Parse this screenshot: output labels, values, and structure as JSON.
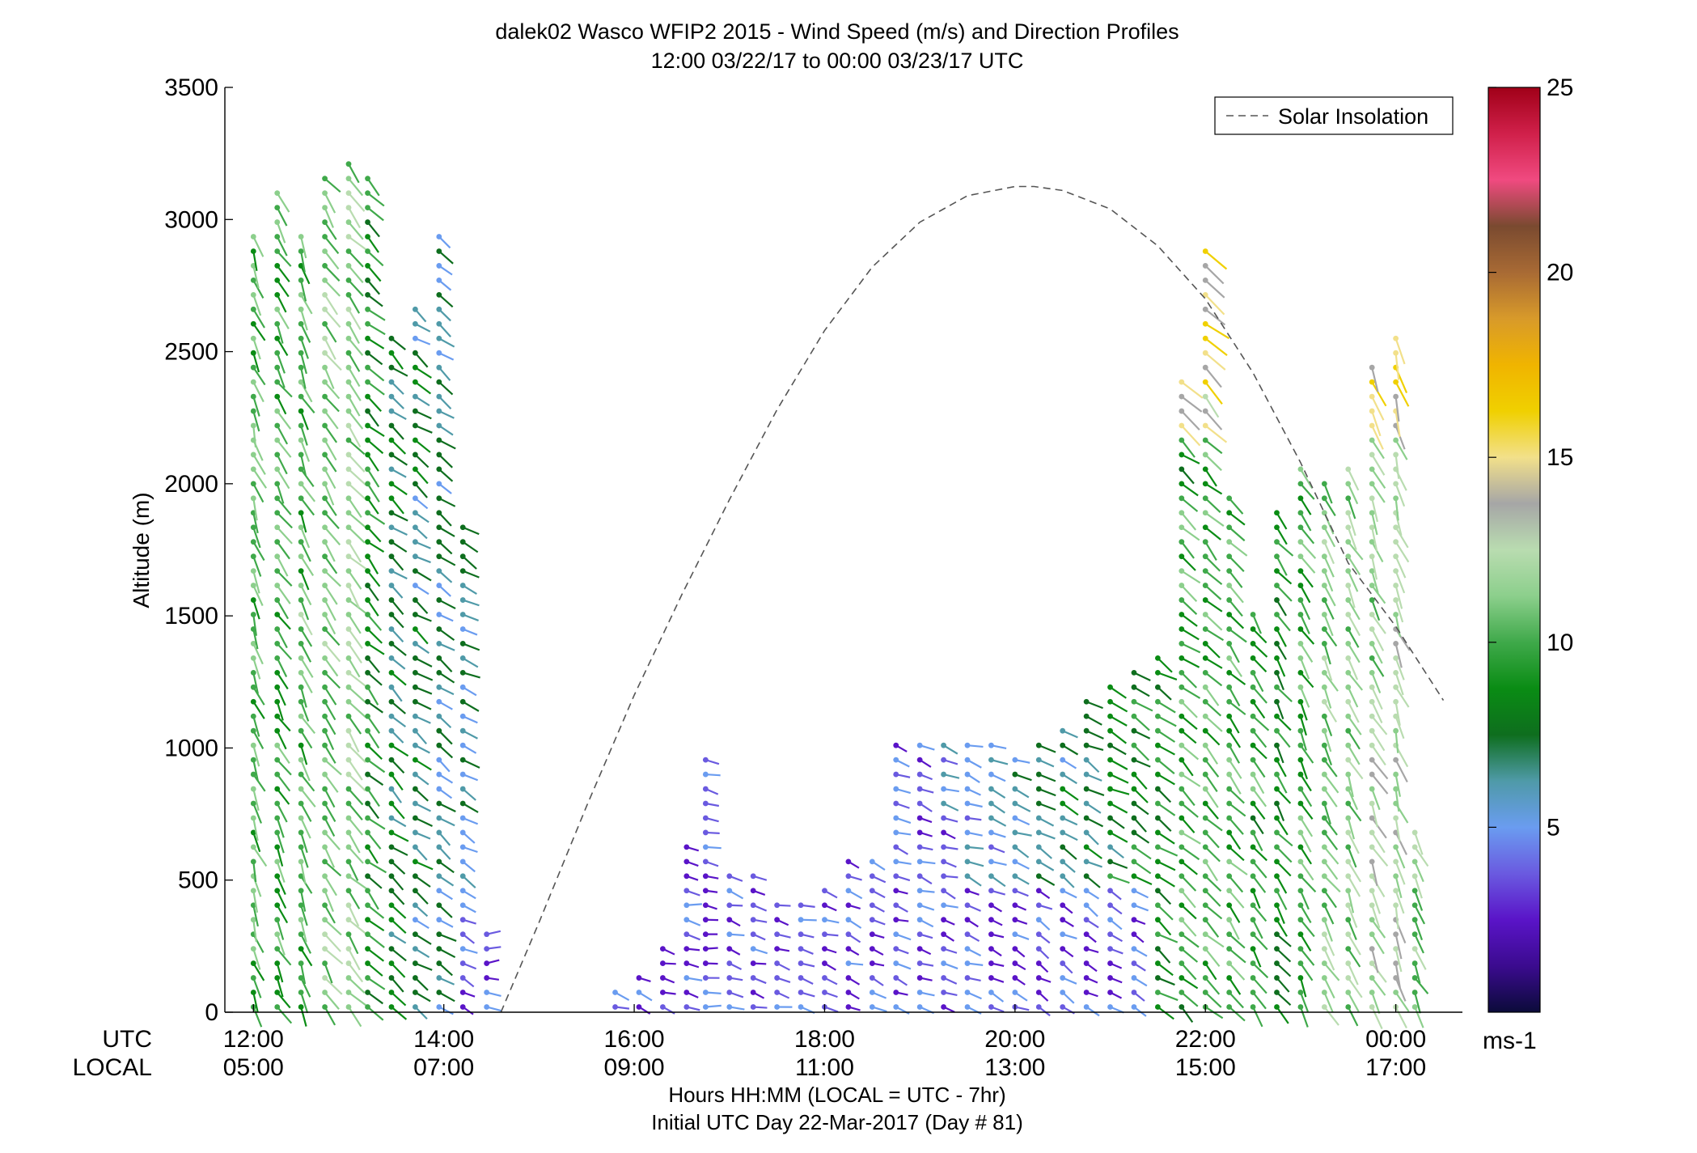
{
  "chart_data": {
    "type": "scatter",
    "title": "dalek02 Wasco WFIP2 2015 - Wind Speed (m/s) and Direction Profiles",
    "subtitle": "12:00 03/22/17 to 00:00 03/23/17  UTC",
    "ylabel": "Altitude (m)",
    "xlabel": "Hours HH:MM  (LOCAL = UTC - 7hr)",
    "xlabel2": "Initial UTC Day 22-Mar-2017 (Day # 81)",
    "x_row_labels": {
      "utc": "UTC",
      "local": "LOCAL"
    },
    "ylim": [
      0,
      3500
    ],
    "y_ticks": [
      "0",
      "500",
      "1000",
      "1500",
      "2000",
      "2500",
      "3000",
      "3500"
    ],
    "y_tick_values": [
      0,
      500,
      1000,
      1500,
      2000,
      2500,
      3000,
      3500
    ],
    "xlim_hours_utc": [
      11.7,
      24.7
    ],
    "x_tick_hours_utc": [
      12,
      14,
      16,
      18,
      20,
      22,
      24
    ],
    "x_ticks_utc": [
      "12:00",
      "14:00",
      "16:00",
      "18:00",
      "20:00",
      "22:00",
      "00:00"
    ],
    "x_ticks_local": [
      "05:00",
      "07:00",
      "09:00",
      "11:00",
      "13:00",
      "15:00",
      "17:00"
    ],
    "grid": false,
    "legend": {
      "position": "top-right",
      "entries": [
        "Solar Insolation"
      ]
    },
    "colorbar": {
      "label": "ms-1",
      "range": [
        0,
        25
      ],
      "ticks": [
        "5",
        "10",
        "15",
        "20",
        "25"
      ],
      "tick_values": [
        5,
        10,
        15,
        20,
        25
      ],
      "colors": [
        "#0b0b3a",
        "#3b0b8f",
        "#5a14c8",
        "#6a5ae0",
        "#6a9cf0",
        "#4f9aa8",
        "#0e6e1e",
        "#0a8c14",
        "#3fa94a",
        "#8ccf8c",
        "#b9dcb0",
        "#a6a6a6",
        "#f2e08a",
        "#f0d000",
        "#f0b400",
        "#d89a2a",
        "#a86a34",
        "#7a4a30",
        "#f04a80",
        "#d0204a",
        "#a00018"
      ]
    },
    "solar_insolation": {
      "series_name": "Solar Insolation",
      "style": "dashed",
      "color": "#555555",
      "peak_altitude_equivalent": 3125,
      "peak_hour_utc": 20.2,
      "x": [
        14.6,
        15.0,
        15.5,
        16.0,
        16.5,
        17.0,
        17.5,
        18.0,
        18.5,
        19.0,
        19.5,
        20.0,
        20.2,
        20.5,
        21.0,
        21.5,
        22.0,
        22.5,
        23.0,
        23.5,
        24.0,
        24.5
      ],
      "y": [
        0,
        340,
        780,
        1200,
        1580,
        1940,
        2280,
        2580,
        2820,
        2990,
        3090,
        3125,
        3125,
        3110,
        3040,
        2900,
        2700,
        2420,
        2080,
        1700,
        1460,
        1180
      ]
    },
    "wind_profiles": {
      "description_fields": [
        "hour_utc",
        "altitude_top_m",
        "altitude_bottom_m",
        "speed_mps",
        "direction_deg"
      ],
      "columns": [
        {
          "x": 12.0,
          "z0": 0,
          "z1": 2950,
          "spd": 10.5,
          "dir": 200
        },
        {
          "x": 12.25,
          "z0": 0,
          "z1": 3100,
          "spd": 10.0,
          "dir": 210
        },
        {
          "x": 12.5,
          "z0": 0,
          "z1": 2950,
          "spd": 10.5,
          "dir": 205
        },
        {
          "x": 12.75,
          "z0": 0,
          "z1": 3200,
          "spd": 11.0,
          "dir": 215
        },
        {
          "x": 13.0,
          "z0": 0,
          "z1": 3250,
          "spd": 11.5,
          "dir": 220
        },
        {
          "x": 13.2,
          "z0": 0,
          "z1": 3180,
          "spd": 9.0,
          "dir": 225
        },
        {
          "x": 13.45,
          "z0": 0,
          "z1": 2600,
          "spd": 7.5,
          "dir": 230
        },
        {
          "x": 13.7,
          "z0": 0,
          "z1": 2700,
          "spd": 7.0,
          "dir": 235
        },
        {
          "x": 13.95,
          "z0": 0,
          "z1": 2950,
          "spd": 6.5,
          "dir": 235
        },
        {
          "x": 14.2,
          "z0": 0,
          "z1": 1850,
          "spd": 6.5,
          "dir": 240
        },
        {
          "x": 14.45,
          "z0": 0,
          "z1": 300,
          "spd": 2.5,
          "dir": 270
        },
        {
          "x": 15.8,
          "z0": 0,
          "z1": 120,
          "spd": 3.0,
          "dir": 250
        },
        {
          "x": 16.05,
          "z0": 0,
          "z1": 180,
          "spd": 3.0,
          "dir": 250
        },
        {
          "x": 16.3,
          "z0": 0,
          "z1": 240,
          "spd": 3.5,
          "dir": 255
        },
        {
          "x": 16.55,
          "z0": 0,
          "z1": 650,
          "spd": 3.5,
          "dir": 260
        },
        {
          "x": 16.75,
          "z0": 0,
          "z1": 980,
          "spd": 4.0,
          "dir": 260
        },
        {
          "x": 17.0,
          "z0": 0,
          "z1": 520,
          "spd": 4.0,
          "dir": 255
        },
        {
          "x": 17.25,
          "z0": 0,
          "z1": 520,
          "spd": 4.0,
          "dir": 255
        },
        {
          "x": 17.5,
          "z0": 0,
          "z1": 430,
          "spd": 4.0,
          "dir": 255
        },
        {
          "x": 17.75,
          "z0": 0,
          "z1": 430,
          "spd": 4.0,
          "dir": 255
        },
        {
          "x": 18.0,
          "z0": 0,
          "z1": 500,
          "spd": 3.5,
          "dir": 250
        },
        {
          "x": 18.25,
          "z0": 0,
          "z1": 620,
          "spd": 3.5,
          "dir": 250
        },
        {
          "x": 18.5,
          "z0": 0,
          "z1": 620,
          "spd": 3.5,
          "dir": 250
        },
        {
          "x": 18.75,
          "z0": 0,
          "z1": 1050,
          "spd": 4.0,
          "dir": 250
        },
        {
          "x": 19.0,
          "z0": 0,
          "z1": 1050,
          "spd": 4.0,
          "dir": 250
        },
        {
          "x": 19.25,
          "z0": 0,
          "z1": 1050,
          "spd": 4.5,
          "dir": 250
        },
        {
          "x": 19.5,
          "z0": 0,
          "z1": 1050,
          "spd": 5.0,
          "dir": 250
        },
        {
          "x": 19.75,
          "z0": 0,
          "z1": 1050,
          "spd": 5.5,
          "dir": 245
        },
        {
          "x": 20.0,
          "z0": 0,
          "z1": 1000,
          "spd": 6.0,
          "dir": 245
        },
        {
          "x": 20.25,
          "z0": 0,
          "z1": 1050,
          "spd": 6.5,
          "dir": 240
        },
        {
          "x": 20.5,
          "z0": 0,
          "z1": 1100,
          "spd": 7.0,
          "dir": 240
        },
        {
          "x": 20.75,
          "z0": 0,
          "z1": 1200,
          "spd": 7.5,
          "dir": 240
        },
        {
          "x": 21.0,
          "z0": 0,
          "z1": 1250,
          "spd": 8.0,
          "dir": 240
        },
        {
          "x": 21.25,
          "z0": 0,
          "z1": 1300,
          "spd": 8.5,
          "dir": 235
        },
        {
          "x": 21.5,
          "z0": 0,
          "z1": 1350,
          "spd": 9.0,
          "dir": 235
        },
        {
          "x": 21.75,
          "z0": 0,
          "z1": 2400,
          "spd": 9.5,
          "dir": 230
        },
        {
          "x": 22.0,
          "z0": 0,
          "z1": 2900,
          "spd": 10.0,
          "dir": 225
        },
        {
          "x": 22.25,
          "z0": 0,
          "z1": 1950,
          "spd": 10.0,
          "dir": 220
        },
        {
          "x": 22.5,
          "z0": 0,
          "z1": 1550,
          "spd": 9.5,
          "dir": 215
        },
        {
          "x": 22.75,
          "z0": 0,
          "z1": 1900,
          "spd": 9.0,
          "dir": 215
        },
        {
          "x": 23.0,
          "z0": 0,
          "z1": 2100,
          "spd": 10.0,
          "dir": 210
        },
        {
          "x": 23.25,
          "z0": 0,
          "z1": 2000,
          "spd": 11.0,
          "dir": 210
        },
        {
          "x": 23.5,
          "z0": 0,
          "z1": 2100,
          "spd": 11.5,
          "dir": 205
        },
        {
          "x": 23.75,
          "z0": 0,
          "z1": 2450,
          "spd": 12.0,
          "dir": 205
        },
        {
          "x": 24.0,
          "z0": 0,
          "z1": 2600,
          "spd": 12.5,
          "dir": 200
        },
        {
          "x": 24.2,
          "z0": 0,
          "z1": 700,
          "spd": 11.0,
          "dir": 205
        }
      ]
    }
  }
}
